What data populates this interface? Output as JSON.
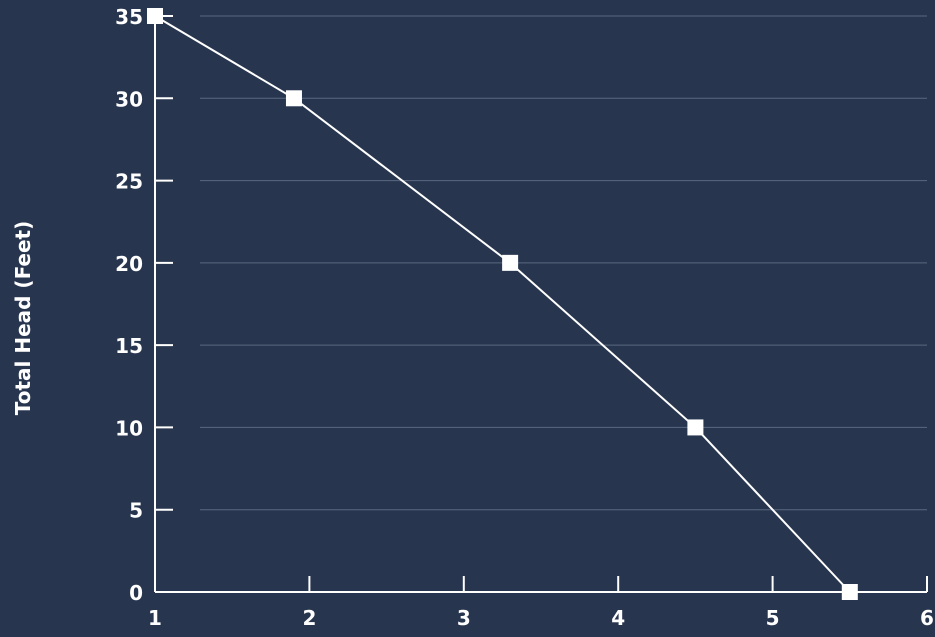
{
  "chart_data": {
    "type": "line",
    "title": "",
    "xlabel": "",
    "ylabel": "Total Head (Feet)",
    "xlim": [
      1,
      6
    ],
    "ylim": [
      0,
      35
    ],
    "x_ticks": [
      "1",
      "2",
      "3",
      "4",
      "5",
      "6"
    ],
    "y_ticks": [
      "0",
      "5",
      "10",
      "15",
      "20",
      "25",
      "30",
      "35"
    ],
    "grid": "horizontal",
    "legend": "none",
    "series": [
      {
        "x": [
          1.0,
          1.9,
          3.3,
          4.5,
          5.5
        ],
        "y": [
          35,
          30,
          20,
          10,
          0
        ],
        "marker": "square"
      }
    ],
    "colors": {
      "background": "#27354e",
      "line": "#ffffff",
      "grid": "#5a6880",
      "axis": "#ffffff"
    }
  }
}
